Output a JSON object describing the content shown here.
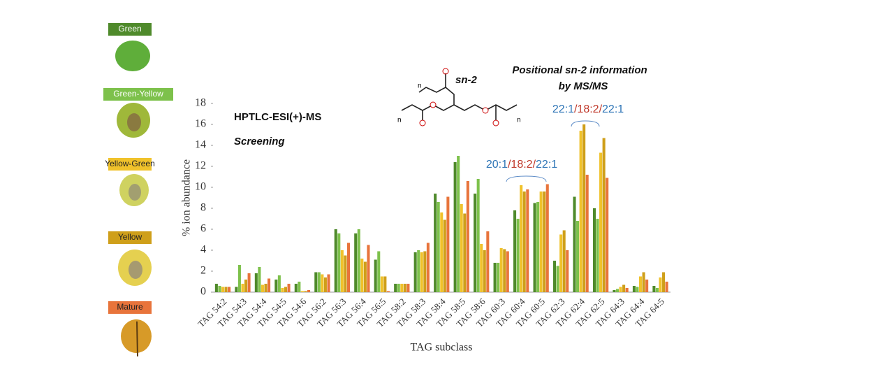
{
  "chart_data": {
    "type": "bar",
    "categories": [
      "TAG 54:2",
      "TAG 54:3",
      "TAG 54:4",
      "TAG 54:5",
      "TAG 54:6",
      "TAG 56:2",
      "TAG 56:3",
      "TAG 56:4",
      "TAG 56:5",
      "TAG 58:2",
      "TAG 58:3",
      "TAG 58:4",
      "TAG 58:5",
      "TAG 58:6",
      "TAG 60:3",
      "TAG 60:4",
      "TAG 60:5",
      "TAG 62:3",
      "TAG 62:4",
      "TAG 62:5",
      "TAG 64:3",
      "TAG 64:4",
      "TAG 64:5"
    ],
    "series": [
      {
        "name": "Green",
        "color": "#4f8a2b",
        "values": [
          0.8,
          0.5,
          1.8,
          1.2,
          0.8,
          1.9,
          6.0,
          5.6,
          3.1,
          0.8,
          3.8,
          9.4,
          12.4,
          9.4,
          2.8,
          7.8,
          8.5,
          3.0,
          9.1,
          8.0,
          0.2,
          0.6,
          0.6
        ]
      },
      {
        "name": "Green-Yellow",
        "color": "#7dc14b",
        "values": [
          0.6,
          2.6,
          2.4,
          1.6,
          1.0,
          1.9,
          5.6,
          6.0,
          3.9,
          0.8,
          4.0,
          8.6,
          13.0,
          10.8,
          2.8,
          7.0,
          8.6,
          2.5,
          6.8,
          7.0,
          0.3,
          0.5,
          0.4
        ]
      },
      {
        "name": "Yellow-Green",
        "color": "#f0c22b",
        "values": [
          0.5,
          0.8,
          0.7,
          0.4,
          0.1,
          1.7,
          4.0,
          3.2,
          1.5,
          0.8,
          3.8,
          7.6,
          8.4,
          4.6,
          4.2,
          10.2,
          9.6,
          5.5,
          15.4,
          13.3,
          0.5,
          1.5,
          1.4
        ]
      },
      {
        "name": "Yellow",
        "color": "#cf9f1a",
        "values": [
          0.5,
          1.2,
          0.8,
          0.5,
          0.1,
          1.4,
          3.5,
          2.9,
          1.5,
          0.8,
          3.9,
          6.9,
          7.5,
          4.0,
          4.1,
          9.6,
          9.6,
          5.9,
          16.0,
          14.7,
          0.7,
          1.9,
          1.9
        ]
      },
      {
        "name": "Mature",
        "color": "#e8743b",
        "values": [
          0.5,
          1.8,
          1.3,
          0.8,
          0.2,
          1.7,
          4.7,
          4.5,
          0.1,
          0.8,
          4.7,
          9.1,
          10.6,
          5.8,
          3.9,
          9.8,
          10.3,
          4.0,
          11.2,
          10.9,
          0.4,
          1.2,
          1.0
        ]
      }
    ],
    "ylim": [
      0,
      18
    ],
    "yticks": [
      0,
      2,
      4,
      6,
      8,
      10,
      12,
      14,
      16,
      18
    ],
    "y_label": "% ion abundance",
    "x_label": "TAG subclass",
    "annotations": {
      "method": "HPTLC-ESI(+)-MS",
      "screening": "Screening",
      "positional": [
        "Positional sn-2 information",
        "by MS/MS"
      ],
      "sn2": "sn-2",
      "n": "n",
      "isomer1": [
        "20:1",
        "/18:2/",
        "22:1"
      ],
      "isomer2": [
        "22:1",
        "/18:2/",
        "22:1"
      ]
    }
  }
}
